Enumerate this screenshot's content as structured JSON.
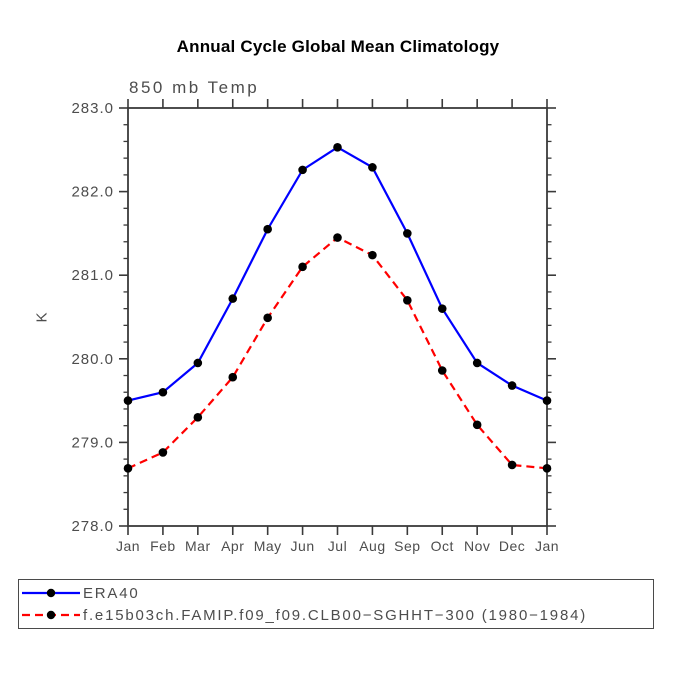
{
  "chart_data": {
    "type": "line",
    "title": "Annual Cycle Global Mean Climatology",
    "subtitle": "850 mb Temp",
    "ylabel": "K",
    "xlabel": "",
    "categories": [
      "Jan",
      "Feb",
      "Mar",
      "Apr",
      "May",
      "Jun",
      "Jul",
      "Aug",
      "Sep",
      "Oct",
      "Nov",
      "Dec",
      "Jan"
    ],
    "ylim": [
      278.0,
      283.0
    ],
    "ytick_major_step": 1.0,
    "ytick_minor_step": 0.2,
    "ytick_label_format_decimals": 1,
    "grid": false,
    "legend_position": "bottom-left-boxed",
    "series": [
      {
        "name": "ERA40",
        "color": "#0000ff",
        "line_style": "solid",
        "marker": "black-dot",
        "values": [
          279.5,
          279.6,
          279.95,
          280.72,
          281.55,
          282.26,
          282.53,
          282.29,
          281.5,
          280.6,
          279.95,
          279.68,
          279.5
        ]
      },
      {
        "name": "f.e15b03ch.FAMIP.f09_f09.CLB00−SGHHT−300 (1980−1984)",
        "color": "#ff0000",
        "line_style": "dashed",
        "marker": "black-dot",
        "values": [
          278.69,
          278.88,
          279.3,
          279.78,
          280.49,
          281.1,
          281.45,
          281.24,
          280.7,
          279.86,
          279.21,
          278.73,
          278.69
        ]
      }
    ],
    "colors": {
      "axis": "#3a3a3a",
      "tick_text": "#4d4d4d",
      "marker": "#000000",
      "title_text": "#000000"
    }
  }
}
